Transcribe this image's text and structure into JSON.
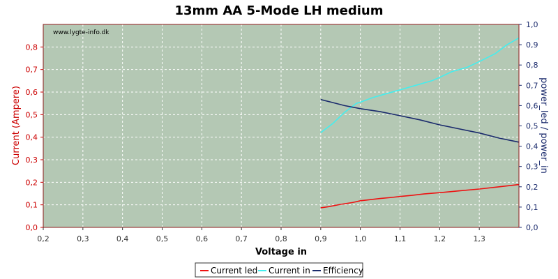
{
  "chart_data": {
    "type": "line",
    "title": "13mm AA 5-Mode LH medium",
    "watermark": "www.lygte-info.dk",
    "xlabel": "Voltage in",
    "ylabel_left": "Current (Ampere)",
    "ylabel_right": "power_led / power_in",
    "xlim": [
      0.2,
      1.4
    ],
    "ylim_left": [
      0.0,
      0.9
    ],
    "ylim_right": [
      0.0,
      1.0
    ],
    "x_ticks": [
      "0,2",
      "0,3",
      "0,4",
      "0,5",
      "0,6",
      "0,7",
      "0,8",
      "0,9",
      "1,0",
      "1,1",
      "1,2",
      "1,3"
    ],
    "y_left_ticks": [
      "0,0",
      "0,1",
      "0,2",
      "0,3",
      "0,4",
      "0,5",
      "0,6",
      "0,7",
      "0,8"
    ],
    "y_right_ticks": [
      "0,0",
      "0,1",
      "0,2",
      "0,3",
      "0,4",
      "0,5",
      "0,6",
      "0,7",
      "0,8",
      "0,9",
      "1,0"
    ],
    "grid": true,
    "legend_position": "bottom",
    "colors": {
      "plot_bg": "#b4c8b4",
      "frame": "#8b1a1a",
      "current_led": "#ee1111",
      "current_in": "#44eeee",
      "efficiency": "#1a2a6c",
      "left_axis": "#cc0000",
      "right_axis": "#1a2a6c"
    },
    "series": [
      {
        "name": "Current led",
        "axis": "left",
        "x": [
          0.9,
          0.92,
          0.95,
          0.98,
          1.0,
          1.02,
          1.05,
          1.08,
          1.1,
          1.13,
          1.16,
          1.2,
          1.25,
          1.3,
          1.35,
          1.4
        ],
        "y": [
          0.087,
          0.092,
          0.102,
          0.11,
          0.118,
          0.122,
          0.128,
          0.133,
          0.137,
          0.142,
          0.148,
          0.154,
          0.162,
          0.17,
          0.18,
          0.19
        ]
      },
      {
        "name": "Current in",
        "axis": "left",
        "x": [
          0.9,
          0.93,
          0.96,
          0.99,
          1.0,
          1.03,
          1.06,
          1.1,
          1.14,
          1.18,
          1.2,
          1.23,
          1.27,
          1.3,
          1.34,
          1.37,
          1.4
        ],
        "y": [
          0.42,
          0.46,
          0.51,
          0.55,
          0.555,
          0.575,
          0.59,
          0.61,
          0.63,
          0.65,
          0.665,
          0.69,
          0.71,
          0.735,
          0.77,
          0.81,
          0.84
        ]
      },
      {
        "name": "Efficiency",
        "axis": "right",
        "x": [
          0.9,
          0.93,
          0.96,
          1.0,
          1.05,
          1.1,
          1.15,
          1.2,
          1.25,
          1.3,
          1.35,
          1.4
        ],
        "y": [
          0.63,
          0.615,
          0.6,
          0.585,
          0.57,
          0.55,
          0.53,
          0.505,
          0.485,
          0.465,
          0.44,
          0.42
        ]
      }
    ]
  }
}
